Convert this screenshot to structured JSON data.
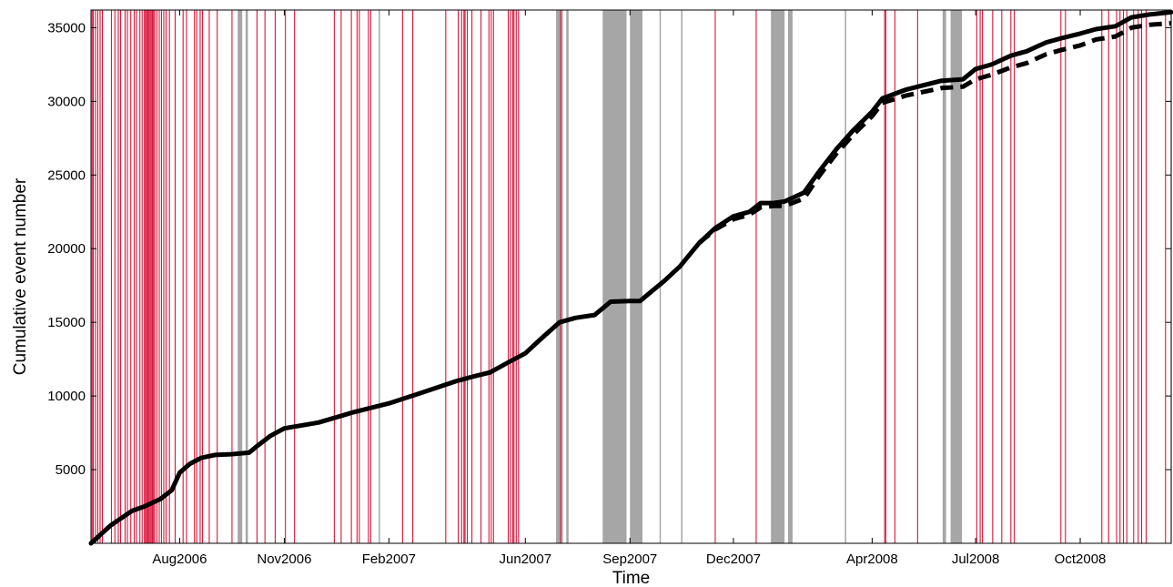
{
  "chart_data": {
    "type": "line",
    "title": "",
    "xlabel": "Time",
    "ylabel": "Cumulative event number",
    "xlim": [
      "2006-05-15",
      "2008-12-20"
    ],
    "ylim": [
      0,
      36200
    ],
    "x_tick_labels": [
      {
        "date": "2006-08-01",
        "label": "Aug2006"
      },
      {
        "date": "2006-11-01",
        "label": "Nov2006"
      },
      {
        "date": "2007-02-01",
        "label": "Feb2007"
      },
      {
        "date": "2007-06-01",
        "label": "Jun2007"
      },
      {
        "date": "2007-09-01",
        "label": "Sep2007"
      },
      {
        "date": "2007-12-01",
        "label": "Dec2007"
      },
      {
        "date": "2008-04-01",
        "label": "Apr2008"
      },
      {
        "date": "2008-07-01",
        "label": "Jul2008"
      },
      {
        "date": "2008-10-01",
        "label": "Oct2008"
      }
    ],
    "y_tick_values": [
      5000,
      10000,
      15000,
      20000,
      25000,
      30000,
      35000
    ],
    "grid": false,
    "colors": {
      "solid": "#000000",
      "dashed": "#000000",
      "red_lines": "#d9163c",
      "gray_bands": "#a6a6a6"
    },
    "series": [
      {
        "style": "solid",
        "x": [
          "2006-05-15",
          "2006-06-01",
          "2006-06-20",
          "2006-07-01",
          "2006-07-15",
          "2006-07-25",
          "2006-08-01",
          "2006-08-10",
          "2006-08-20",
          "2006-09-01",
          "2006-09-15",
          "2006-10-01",
          "2006-10-08",
          "2006-10-20",
          "2006-11-01",
          "2006-12-01",
          "2007-01-01",
          "2007-02-01",
          "2007-03-01",
          "2007-04-01",
          "2007-04-15",
          "2007-05-01",
          "2007-05-15",
          "2007-06-01",
          "2007-06-15",
          "2007-07-01",
          "2007-07-15",
          "2007-08-01",
          "2007-08-15",
          "2007-09-01",
          "2007-09-10",
          "2007-09-20",
          "2007-10-01",
          "2007-10-15",
          "2007-11-01",
          "2007-11-15",
          "2007-12-01",
          "2007-12-15",
          "2007-12-25",
          "2008-01-05",
          "2008-01-15",
          "2008-02-01",
          "2008-02-15",
          "2008-03-01",
          "2008-03-15",
          "2008-04-01",
          "2008-04-10",
          "2008-05-01",
          "2008-06-01",
          "2008-06-20",
          "2008-07-01",
          "2008-07-15",
          "2008-08-01",
          "2008-08-15",
          "2008-09-01",
          "2008-09-15",
          "2008-10-01",
          "2008-10-15",
          "2008-11-01",
          "2008-11-15",
          "2008-12-01",
          "2008-12-20"
        ],
        "y": [
          0,
          1200,
          2200,
          2500,
          3000,
          3600,
          4800,
          5400,
          5800,
          6000,
          6050,
          6150,
          6600,
          7300,
          7800,
          8200,
          8900,
          9500,
          10200,
          11000,
          11300,
          11600,
          12200,
          12900,
          13900,
          15000,
          15300,
          15500,
          16400,
          16450,
          16450,
          17100,
          17800,
          18800,
          20400,
          21400,
          22200,
          22500,
          23100,
          23100,
          23200,
          23800,
          25300,
          26800,
          28000,
          29300,
          30200,
          30800,
          31400,
          31500,
          32200,
          32500,
          33100,
          33400,
          34000,
          34300,
          34600,
          34900,
          35100,
          35700,
          35900,
          36050
        ]
      },
      {
        "style": "dashed",
        "x": [
          "2007-11-01",
          "2007-11-15",
          "2007-12-01",
          "2007-12-15",
          "2007-12-25",
          "2008-01-05",
          "2008-01-15",
          "2008-02-01",
          "2008-02-15",
          "2008-03-01",
          "2008-03-15",
          "2008-04-01",
          "2008-04-10",
          "2008-05-01",
          "2008-06-01",
          "2008-06-20",
          "2008-07-01",
          "2008-07-15",
          "2008-08-01",
          "2008-08-15",
          "2008-09-01",
          "2008-09-15",
          "2008-10-01",
          "2008-10-15",
          "2008-11-01",
          "2008-11-15",
          "2008-12-01",
          "2008-12-20"
        ],
        "y": [
          20400,
          21300,
          22000,
          22300,
          22800,
          22900,
          22900,
          23400,
          25000,
          26500,
          27700,
          29000,
          29900,
          30400,
          30900,
          31000,
          31500,
          31800,
          32300,
          32600,
          33200,
          33500,
          33800,
          34200,
          34400,
          35000,
          35200,
          35300
        ]
      }
    ],
    "gray_bands": [
      {
        "start": "2006-09-21",
        "end": "2006-09-25"
      },
      {
        "start": "2006-09-28",
        "end": "2006-09-30"
      },
      {
        "start": "2007-01-23",
        "end": "2007-01-24"
      },
      {
        "start": "2007-06-28",
        "end": "2007-07-04"
      },
      {
        "start": "2007-07-07",
        "end": "2007-07-09"
      },
      {
        "start": "2007-08-08",
        "end": "2007-08-29"
      },
      {
        "start": "2007-09-01",
        "end": "2007-09-12"
      },
      {
        "start": "2007-09-27",
        "end": "2007-09-28"
      },
      {
        "start": "2007-10-16",
        "end": "2007-10-17"
      },
      {
        "start": "2008-01-03",
        "end": "2008-01-15"
      },
      {
        "start": "2008-01-18",
        "end": "2008-01-22"
      },
      {
        "start": "2008-03-08",
        "end": "2008-03-09"
      },
      {
        "start": "2008-06-02",
        "end": "2008-06-05"
      },
      {
        "start": "2008-06-09",
        "end": "2008-06-19"
      }
    ],
    "red_lines": [
      "2006-05-16",
      "2006-05-17",
      "2006-05-19",
      "2006-05-21",
      "2006-05-23",
      "2006-05-25",
      "2006-06-02",
      "2006-06-05",
      "2006-06-08",
      "2006-06-10",
      "2006-06-14",
      "2006-06-16",
      "2006-06-19",
      "2006-06-22",
      "2006-06-24",
      "2006-06-27",
      "2006-06-29",
      "2006-07-01",
      "2006-07-02",
      "2006-07-03",
      "2006-07-04",
      "2006-07-05",
      "2006-07-06",
      "2006-07-07",
      "2006-07-08",
      "2006-07-09",
      "2006-07-10",
      "2006-07-12",
      "2006-07-14",
      "2006-07-16",
      "2006-07-18",
      "2006-07-20",
      "2006-07-23",
      "2006-07-28",
      "2006-08-04",
      "2006-08-07",
      "2006-08-14",
      "2006-08-16",
      "2006-08-19",
      "2006-08-21",
      "2006-08-27",
      "2006-09-03",
      "2006-09-16",
      "2006-10-08",
      "2006-10-15",
      "2006-10-24",
      "2006-11-02",
      "2006-11-10",
      "2006-12-15",
      "2006-12-21",
      "2006-12-30",
      "2007-01-04",
      "2007-01-06",
      "2007-01-14",
      "2007-01-16",
      "2007-02-13",
      "2007-02-22",
      "2007-03-23",
      "2007-04-03",
      "2007-04-06",
      "2007-04-08",
      "2007-04-09",
      "2007-04-11",
      "2007-04-15",
      "2007-04-23",
      "2007-04-30",
      "2007-05-02",
      "2007-05-04",
      "2007-05-17",
      "2007-05-19",
      "2007-05-21",
      "2007-05-22",
      "2007-05-24",
      "2007-05-26",
      "2007-07-02",
      "2007-11-15",
      "2007-12-21",
      "2008-04-12",
      "2008-04-13",
      "2008-04-21",
      "2008-05-11",
      "2008-07-02",
      "2008-07-05",
      "2008-07-07",
      "2008-07-16",
      "2008-07-24",
      "2008-08-01",
      "2008-08-04",
      "2008-09-14",
      "2008-09-18",
      "2008-10-20",
      "2008-10-26",
      "2008-11-02",
      "2008-11-05",
      "2008-11-08",
      "2008-11-11",
      "2008-11-17",
      "2008-11-21",
      "2008-11-24",
      "2008-11-28",
      "2008-12-15",
      "2008-12-20"
    ]
  }
}
